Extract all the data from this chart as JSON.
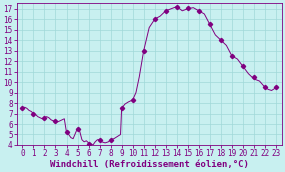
{
  "xlabel": "Windchill (Refroidissement éolien,°C)",
  "bg_color": "#c8f0f0",
  "line_color": "#800080",
  "marker_color": "#800080",
  "xlim": [
    -0.5,
    23.5
  ],
  "ylim": [
    4,
    17.5
  ],
  "yticks": [
    4,
    5,
    6,
    7,
    8,
    9,
    10,
    11,
    12,
    13,
    14,
    15,
    16,
    17
  ],
  "xticks": [
    0,
    1,
    2,
    3,
    4,
    5,
    6,
    7,
    8,
    9,
    10,
    11,
    12,
    13,
    14,
    15,
    16,
    17,
    18,
    19,
    20,
    21,
    22,
    23
  ],
  "x_data": [
    0,
    0.2,
    0.4,
    0.6,
    0.8,
    1.0,
    1.2,
    1.4,
    1.6,
    1.8,
    2.0,
    2.2,
    2.4,
    2.6,
    2.8,
    3.0,
    3.2,
    3.4,
    3.6,
    3.8,
    4.0,
    4.2,
    4.4,
    4.6,
    4.8,
    5.0,
    5.2,
    5.4,
    5.6,
    5.8,
    6.0,
    6.2,
    6.4,
    6.6,
    6.8,
    7.0,
    7.2,
    7.5,
    7.8,
    8.0,
    8.3,
    8.6,
    8.9,
    9.0,
    9.3,
    9.6,
    9.8,
    10.0,
    10.3,
    10.6,
    11.0,
    11.5,
    12.0,
    12.5,
    13.0,
    13.5,
    14.0,
    14.5,
    15.0,
    15.5,
    16.0,
    16.5,
    17.0,
    17.5,
    18.0,
    18.5,
    19.0,
    19.5,
    20.0,
    20.5,
    21.0,
    21.5,
    22.0,
    22.3,
    22.6,
    22.9,
    23.0
  ],
  "y_data": [
    7.5,
    7.6,
    7.5,
    7.3,
    7.2,
    7.0,
    6.9,
    6.7,
    6.6,
    6.5,
    6.6,
    6.7,
    6.6,
    6.4,
    6.3,
    6.3,
    6.2,
    6.3,
    6.4,
    6.5,
    5.2,
    5.0,
    4.7,
    4.6,
    5.1,
    5.6,
    5.3,
    4.5,
    4.3,
    4.4,
    4.2,
    4.1,
    4.0,
    4.3,
    4.5,
    4.5,
    4.3,
    4.2,
    4.3,
    4.5,
    4.6,
    4.8,
    5.0,
    7.5,
    7.9,
    8.1,
    8.2,
    8.3,
    9.0,
    10.5,
    13.0,
    15.2,
    16.0,
    16.3,
    16.8,
    17.0,
    17.2,
    16.8,
    17.0,
    17.1,
    16.8,
    16.5,
    15.5,
    14.5,
    14.0,
    13.5,
    12.5,
    12.2,
    11.5,
    10.8,
    10.3,
    10.1,
    9.5,
    9.3,
    9.2,
    9.4,
    9.5
  ],
  "marker_x": [
    0,
    1,
    2,
    3,
    4,
    5,
    6,
    7,
    8,
    9,
    10,
    11,
    12,
    13,
    14,
    15,
    16,
    17,
    18,
    19,
    20,
    21,
    22,
    23
  ],
  "marker_y": [
    7.5,
    7.0,
    6.6,
    6.3,
    5.2,
    5.5,
    4.1,
    4.5,
    4.5,
    7.5,
    8.3,
    13.0,
    16.0,
    16.8,
    17.2,
    17.1,
    16.8,
    15.5,
    14.0,
    12.5,
    11.5,
    10.5,
    9.5,
    9.5
  ],
  "grid_color": "#a0d8d8",
  "xlabel_fontsize": 6.5,
  "tick_fontsize": 5.5,
  "figsize": [
    2.85,
    1.72
  ],
  "dpi": 100
}
